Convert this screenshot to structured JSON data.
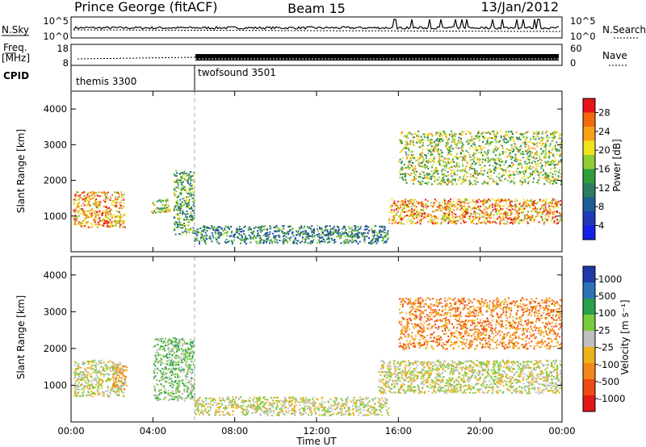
{
  "header": {
    "station": "Prince George (fitACF)",
    "beam": "Beam 15",
    "date": "13/Jan/2012"
  },
  "sky_panel": {
    "left_label": "N.Sky",
    "right_label": "N.Search",
    "left_ticks": [
      "10^5",
      "10^0"
    ],
    "right_ticks": [
      "10^5",
      "10^0"
    ]
  },
  "freq_panel": {
    "left_label_top": "Freq.",
    "left_label_bottom": "[MHz]",
    "left_ticks": [
      "18",
      "8"
    ],
    "right_label": "Nave",
    "right_ticks": [
      "60",
      "0"
    ]
  },
  "cpid_panel": {
    "label": "CPID",
    "segments": [
      {
        "name": "themis 3300",
        "start_hour": 0
      },
      {
        "name": "twofsound 3501",
        "start_hour": 6
      }
    ]
  },
  "power_panel": {
    "ylabel": "Slant Range [km]",
    "yticks": [
      "4000",
      "3000",
      "2000",
      "1000"
    ],
    "colorbar": {
      "label": "Power [dB]",
      "ticks": [
        "28",
        "24",
        "20",
        "16",
        "12",
        "8",
        "4"
      ],
      "colors": [
        "#e8141c",
        "#f36a0c",
        "#f7a11a",
        "#f2e21c",
        "#8fcd34",
        "#2f9d3a",
        "#2d7b60",
        "#1d5e9a",
        "#1f39b9",
        "#1420e6"
      ]
    }
  },
  "velocity_panel": {
    "ylabel": "Slant Range [km]",
    "yticks": [
      "4000",
      "3000",
      "2000",
      "1000"
    ],
    "colorbar": {
      "label": "Velocity [m s⁻¹]",
      "ticks": [
        "1000",
        "500",
        "100",
        "25",
        "-25",
        "-100",
        "-500",
        "-1000"
      ],
      "colors": [
        "#1f3aa8",
        "#2c73b8",
        "#2aa04a",
        "#7acb3a",
        "#bfbfbf",
        "#ecb21a",
        "#f4871b",
        "#ee4a14",
        "#e21717"
      ]
    }
  },
  "xaxis": {
    "label": "Time UT",
    "ticks": [
      "00:00",
      "04:00",
      "08:00",
      "12:00",
      "16:00",
      "20:00",
      "00:00"
    ]
  },
  "chart_data": [
    {
      "type": "heatmap",
      "title": "Power",
      "xlabel": "Time UT",
      "ylabel": "Slant Range [km]",
      "xlim": [
        0,
        24
      ],
      "ylim": [
        0,
        4500
      ],
      "colorbar_range": [
        0,
        30
      ],
      "colorbar_unit": "dB",
      "regions": [
        {
          "t": [
            0.1,
            2.6
          ],
          "range_km": [
            700,
            1700
          ],
          "peak_db": 28
        },
        {
          "t": [
            3.9,
            4.8
          ],
          "range_km": [
            1100,
            1500
          ],
          "peak_db": 20
        },
        {
          "t": [
            5.0,
            6.0
          ],
          "range_km": [
            500,
            2300
          ],
          "peak_db": 16
        },
        {
          "t": [
            6.0,
            15.5
          ],
          "range_km": [
            250,
            750
          ],
          "peak_db": 12
        },
        {
          "t": [
            15.5,
            24.0
          ],
          "range_km": [
            800,
            1500
          ],
          "peak_db": 28
        },
        {
          "t": [
            16.0,
            24.0
          ],
          "range_km": [
            1900,
            3400
          ],
          "peak_db": 20
        }
      ]
    },
    {
      "type": "heatmap",
      "title": "Velocity",
      "xlabel": "Time UT",
      "ylabel": "Slant Range [km]",
      "xlim": [
        0,
        24
      ],
      "ylim": [
        0,
        4500
      ],
      "colorbar_range": [
        -1000,
        1000
      ],
      "colorbar_unit": "m s-1",
      "regions": [
        {
          "t": [
            0.1,
            2.6
          ],
          "range_km": [
            700,
            1700
          ],
          "velocity": 0
        },
        {
          "t": [
            2.0,
            2.7
          ],
          "range_km": [
            900,
            1600
          ],
          "velocity": -200
        },
        {
          "t": [
            4.0,
            6.0
          ],
          "range_km": [
            600,
            2300
          ],
          "velocity": 150
        },
        {
          "t": [
            6.0,
            15.5
          ],
          "range_km": [
            200,
            700
          ],
          "velocity": -100
        },
        {
          "t": [
            15.0,
            24.0
          ],
          "range_km": [
            800,
            1700
          ],
          "velocity": 0
        },
        {
          "t": [
            16.0,
            24.0
          ],
          "range_km": [
            2000,
            3400
          ],
          "velocity": -400
        }
      ]
    }
  ]
}
